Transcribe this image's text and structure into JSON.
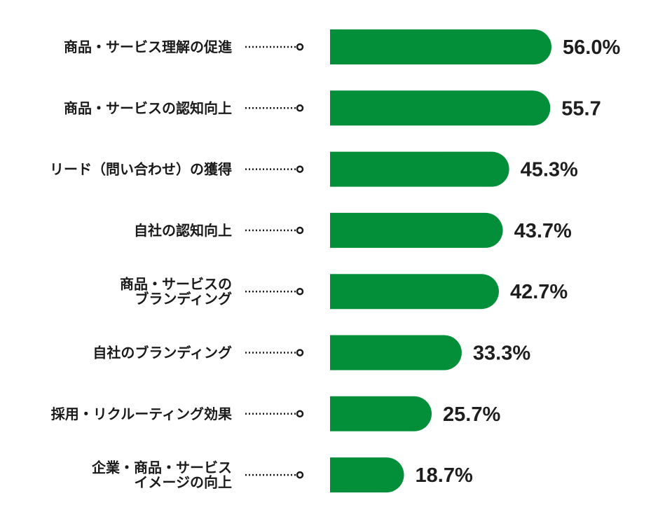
{
  "colors": {
    "bar": "#038f3a",
    "text": "#1a1a1a"
  },
  "chart_data": {
    "type": "bar",
    "orientation": "horizontal",
    "categories": [
      "商品・サービス理解の促進",
      "商品・サービスの認知向上",
      "リード（問い合わせ）の獲得",
      "自社の認知向上",
      "商品・サービスの\nブランディング",
      "自社のブランディング",
      "採用・リクルーティング効果",
      "企業・商品・サービス\nイメージの向上"
    ],
    "values": [
      56.0,
      55.7,
      45.3,
      43.7,
      42.7,
      33.3,
      25.7,
      18.7
    ],
    "value_labels": [
      "56.0%",
      "55.7",
      "45.3%",
      "43.7%",
      "42.7%",
      "33.3%",
      "25.7%",
      "18.7%"
    ],
    "xlim": [
      0,
      56.0
    ],
    "grid": false,
    "legend": "none"
  }
}
